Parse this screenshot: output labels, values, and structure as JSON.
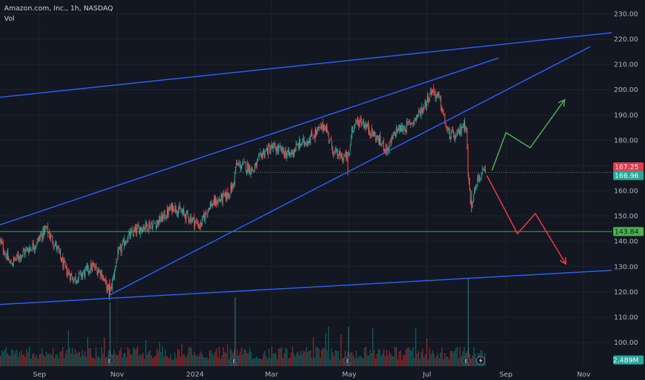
{
  "header": {
    "symbol_line": "Amazon.com, Inc., 1h, NASDAQ",
    "volume_label": "Vol"
  },
  "colors": {
    "background": "#131722",
    "up": "#26a69a",
    "down": "#ef5350",
    "trendline": "#2962ff",
    "arrow_up": "#4caf50",
    "arrow_down": "#f23645",
    "grid": "#1e222d"
  },
  "chart_data": {
    "type": "candlestick",
    "title": "Amazon.com, Inc., 1h, NASDAQ",
    "ylim": [
      98,
      232
    ],
    "y_ticks": [
      100,
      110,
      120,
      130,
      140,
      150,
      160,
      170,
      180,
      190,
      200,
      210,
      220,
      230
    ],
    "y_tick_labels": [
      "100.00",
      "110.00",
      "120.00",
      "130.00",
      "140.00",
      "150.00",
      "160.00",
      "170.00",
      "180.00",
      "190.00",
      "200.00",
      "210.00",
      "220.00",
      "230.00"
    ],
    "x_range": [
      "2023-08-01",
      "2024-11-23"
    ],
    "x_ticks": [
      {
        "label": "Sep",
        "date": "2023-09-01"
      },
      {
        "label": "Nov",
        "date": "2023-11-01"
      },
      {
        "label": "2024",
        "date": "2024-01-01"
      },
      {
        "label": "Mar",
        "date": "2024-03-01"
      },
      {
        "label": "May",
        "date": "2024-05-01"
      },
      {
        "label": "Jul",
        "date": "2024-07-01"
      },
      {
        "label": "Sep",
        "date": "2024-09-01"
      },
      {
        "label": "Nov",
        "date": "2024-11-01"
      }
    ],
    "price_path": [
      [
        "2023-08-01",
        140
      ],
      [
        "2023-08-09",
        131
      ],
      [
        "2023-08-18",
        135
      ],
      [
        "2023-08-29",
        139
      ],
      [
        "2023-09-06",
        145
      ],
      [
        "2023-09-14",
        138
      ],
      [
        "2023-09-21",
        129
      ],
      [
        "2023-09-28",
        125
      ],
      [
        "2023-10-05",
        127
      ],
      [
        "2023-10-12",
        130
      ],
      [
        "2023-10-19",
        128
      ],
      [
        "2023-10-26",
        119
      ],
      [
        "2023-11-01",
        134
      ],
      [
        "2023-11-08",
        141
      ],
      [
        "2023-11-15",
        144
      ],
      [
        "2023-11-22",
        146
      ],
      [
        "2023-12-01",
        147
      ],
      [
        "2023-12-08",
        150
      ],
      [
        "2023-12-15",
        154
      ],
      [
        "2023-12-22",
        151
      ],
      [
        "2023-12-29",
        149
      ],
      [
        "2024-01-05",
        146
      ],
      [
        "2024-01-12",
        154
      ],
      [
        "2024-01-19",
        156
      ],
      [
        "2024-01-26",
        158
      ],
      [
        "2024-01-31",
        162
      ],
      [
        "2024-02-02",
        170
      ],
      [
        "2024-02-09",
        170
      ],
      [
        "2024-02-16",
        168
      ],
      [
        "2024-02-23",
        175
      ],
      [
        "2024-03-01",
        177
      ],
      [
        "2024-03-08",
        176
      ],
      [
        "2024-03-15",
        174
      ],
      [
        "2024-03-22",
        178
      ],
      [
        "2024-03-29",
        180
      ],
      [
        "2024-04-05",
        183
      ],
      [
        "2024-04-12",
        186
      ],
      [
        "2024-04-19",
        175
      ],
      [
        "2024-04-26",
        173
      ],
      [
        "2024-05-01",
        174
      ],
      [
        "2024-05-03",
        185
      ],
      [
        "2024-05-10",
        188
      ],
      [
        "2024-05-17",
        184
      ],
      [
        "2024-05-24",
        180
      ],
      [
        "2024-05-31",
        176
      ],
      [
        "2024-06-07",
        184
      ],
      [
        "2024-06-14",
        185
      ],
      [
        "2024-06-21",
        188
      ],
      [
        "2024-06-28",
        193
      ],
      [
        "2024-07-05",
        200
      ],
      [
        "2024-07-11",
        196
      ],
      [
        "2024-07-17",
        183
      ],
      [
        "2024-07-24",
        181
      ],
      [
        "2024-07-29",
        186
      ],
      [
        "2024-08-01",
        186
      ],
      [
        "2024-08-02",
        167
      ],
      [
        "2024-08-05",
        152
      ],
      [
        "2024-08-07",
        162
      ],
      [
        "2024-08-12",
        166
      ],
      [
        "2024-08-16",
        167.25
      ]
    ],
    "trendlines": [
      {
        "name": "upper-channel",
        "from": [
          "2023-08-01",
          197
        ],
        "to": [
          "2024-11-23",
          222.5
        ]
      },
      {
        "name": "lower-channel",
        "from": [
          "2023-08-01",
          115
        ],
        "to": [
          "2024-11-23",
          128.5
        ]
      },
      {
        "name": "wedge-top",
        "from": [
          "2023-08-01",
          146.5
        ],
        "to": [
          "2024-08-26",
          212.5
        ]
      },
      {
        "name": "wedge-bottom",
        "from": [
          "2023-10-26",
          118.7
        ],
        "to": [
          "2024-11-06",
          217
        ]
      }
    ],
    "horizontal_levels": [
      {
        "name": "resistance",
        "from_date": "2024-01-31",
        "value": 167.25,
        "color": "#f23645",
        "style": "dotted"
      },
      {
        "name": "support",
        "from_date": "2023-08-01",
        "value": 143.84,
        "color": "#4caf50",
        "style": "solid"
      }
    ],
    "scenario_up": [
      [
        "2024-08-21",
        168
      ],
      [
        "2024-09-01",
        183
      ],
      [
        "2024-09-20",
        177
      ],
      [
        "2024-10-17",
        196
      ]
    ],
    "scenario_down": [
      [
        "2024-08-17",
        166
      ],
      [
        "2024-09-10",
        143
      ],
      [
        "2024-09-24",
        151
      ],
      [
        "2024-10-18",
        131
      ]
    ],
    "price_tags": [
      {
        "label": "167.25",
        "value": 167.25,
        "bg": "#f23645",
        "fg": "#ffffff"
      },
      {
        "label": "166.96",
        "value": 166.96,
        "bg": "#26a69a",
        "fg": "#ffffff"
      },
      {
        "label": "143.84",
        "value": 143.84,
        "bg": "#4caf50",
        "fg": "#131722"
      }
    ],
    "volume": {
      "label": "Vol",
      "last_label": "2.489M",
      "last_value": 2.489
    },
    "volume_spikes": [
      [
        "2023-10-26",
        6.8
      ],
      [
        "2024-02-01",
        7.4
      ],
      [
        "2024-04-30",
        4.2
      ],
      [
        "2024-08-02",
        9.5
      ]
    ],
    "earnings_markers": [
      "2023-10-26",
      "2024-02-01",
      "2024-04-30",
      "2024-08-01"
    ],
    "earnings_label": "E"
  }
}
